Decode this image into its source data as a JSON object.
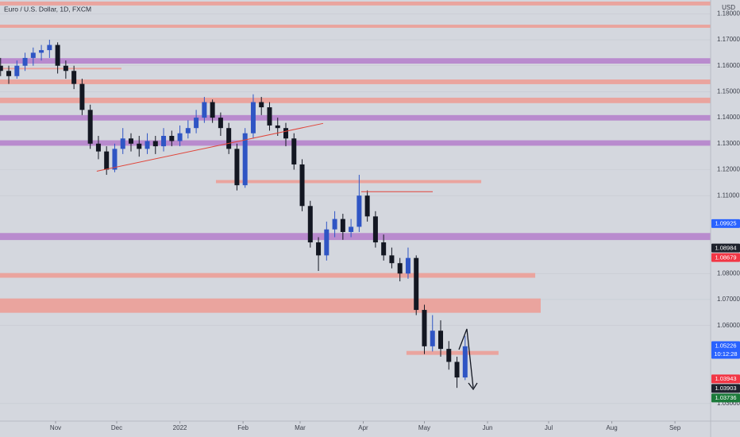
{
  "chart_data": {
    "type": "candlestick",
    "title": "Euro / U.S. Dollar, 1D, FXCM",
    "currency": "USD",
    "up_color": "#2f55c4",
    "down_color": "#131722",
    "grid": true,
    "xlim": [
      3.7,
      352.5
    ],
    "ylim": [
      1.0232,
      1.1853
    ],
    "xticks": [
      {
        "value": 31,
        "label": "Nov"
      },
      {
        "value": 61,
        "label": "Dec"
      },
      {
        "value": 92,
        "label": "2022"
      },
      {
        "value": 123,
        "label": "Feb"
      },
      {
        "value": 151,
        "label": "Mar"
      },
      {
        "value": 182,
        "label": "Apr"
      },
      {
        "value": 212,
        "label": "May"
      },
      {
        "value": 243,
        "label": "Jun"
      },
      {
        "value": 273,
        "label": "Jul"
      },
      {
        "value": 304,
        "label": "Aug"
      },
      {
        "value": 335,
        "label": "Sep"
      }
    ],
    "yticks": [
      {
        "value": 1.18,
        "label": "1.18000"
      },
      {
        "value": 1.17,
        "label": "1.17000"
      },
      {
        "value": 1.16,
        "label": "1.16000"
      },
      {
        "value": 1.15,
        "label": "1.15000"
      },
      {
        "value": 1.14,
        "label": "1.14000"
      },
      {
        "value": 1.13,
        "label": "1.13000"
      },
      {
        "value": 1.12,
        "label": "1.12000"
      },
      {
        "value": 1.11,
        "label": "1.11000"
      },
      {
        "value": 1.08,
        "label": "1.08000"
      },
      {
        "value": 1.07,
        "label": "1.07000"
      },
      {
        "value": 1.06,
        "label": "1.06000"
      },
      {
        "value": 1.03,
        "label": "1.03000"
      }
    ],
    "ohlc": [
      [
        4,
        1.16,
        1.163,
        1.156,
        1.158
      ],
      [
        8,
        1.158,
        1.16,
        1.153,
        1.156
      ],
      [
        12,
        1.156,
        1.162,
        1.155,
        1.16
      ],
      [
        16,
        1.16,
        1.165,
        1.158,
        1.163
      ],
      [
        20,
        1.163,
        1.167,
        1.16,
        1.165
      ],
      [
        24,
        1.165,
        1.168,
        1.162,
        1.166
      ],
      [
        28,
        1.166,
        1.17,
        1.163,
        1.168
      ],
      [
        32,
        1.168,
        1.169,
        1.157,
        1.16
      ],
      [
        36,
        1.16,
        1.162,
        1.155,
        1.158
      ],
      [
        40,
        1.158,
        1.16,
        1.151,
        1.153
      ],
      [
        44,
        1.153,
        1.155,
        1.141,
        1.143
      ],
      [
        48,
        1.143,
        1.145,
        1.128,
        1.13
      ],
      [
        52,
        1.13,
        1.133,
        1.124,
        1.127
      ],
      [
        56,
        1.127,
        1.129,
        1.118,
        1.12
      ],
      [
        60,
        1.12,
        1.13,
        1.119,
        1.128
      ],
      [
        64,
        1.128,
        1.136,
        1.126,
        1.132
      ],
      [
        68,
        1.132,
        1.134,
        1.127,
        1.13
      ],
      [
        72,
        1.13,
        1.133,
        1.125,
        1.128
      ],
      [
        76,
        1.128,
        1.134,
        1.126,
        1.131
      ],
      [
        80,
        1.131,
        1.133,
        1.126,
        1.129
      ],
      [
        84,
        1.129,
        1.136,
        1.127,
        1.133
      ],
      [
        88,
        1.133,
        1.135,
        1.129,
        1.131
      ],
      [
        92,
        1.131,
        1.137,
        1.129,
        1.134
      ],
      [
        96,
        1.134,
        1.139,
        1.132,
        1.136
      ],
      [
        100,
        1.136,
        1.143,
        1.134,
        1.14
      ],
      [
        104,
        1.14,
        1.148,
        1.138,
        1.146
      ],
      [
        108,
        1.146,
        1.147,
        1.138,
        1.14
      ],
      [
        112,
        1.14,
        1.142,
        1.133,
        1.136
      ],
      [
        116,
        1.136,
        1.138,
        1.126,
        1.128
      ],
      [
        120,
        1.128,
        1.13,
        1.112,
        1.114
      ],
      [
        124,
        1.114,
        1.136,
        1.113,
        1.134
      ],
      [
        128,
        1.134,
        1.149,
        1.132,
        1.146
      ],
      [
        132,
        1.146,
        1.148,
        1.141,
        1.144
      ],
      [
        136,
        1.144,
        1.146,
        1.135,
        1.137
      ],
      [
        140,
        1.137,
        1.14,
        1.133,
        1.136
      ],
      [
        144,
        1.136,
        1.138,
        1.129,
        1.132
      ],
      [
        148,
        1.132,
        1.134,
        1.12,
        1.122
      ],
      [
        152,
        1.122,
        1.124,
        1.104,
        1.106
      ],
      [
        156,
        1.106,
        1.108,
        1.09,
        1.092
      ],
      [
        160,
        1.092,
        1.094,
        1.081,
        1.087
      ],
      [
        164,
        1.087,
        1.1,
        1.085,
        1.097
      ],
      [
        168,
        1.097,
        1.104,
        1.094,
        1.101
      ],
      [
        172,
        1.101,
        1.103,
        1.093,
        1.096
      ],
      [
        176,
        1.096,
        1.101,
        1.094,
        1.098
      ],
      [
        180,
        1.098,
        1.118,
        1.096,
        1.11
      ],
      [
        184,
        1.11,
        1.112,
        1.1,
        1.102
      ],
      [
        188,
        1.102,
        1.104,
        1.09,
        1.092
      ],
      [
        192,
        1.092,
        1.095,
        1.085,
        1.087
      ],
      [
        196,
        1.087,
        1.09,
        1.082,
        1.084
      ],
      [
        200,
        1.084,
        1.086,
        1.077,
        1.08
      ],
      [
        204,
        1.08,
        1.09,
        1.078,
        1.086
      ],
      [
        208,
        1.086,
        1.087,
        1.064,
        1.066
      ],
      [
        212,
        1.066,
        1.068,
        1.049,
        1.052
      ],
      [
        216,
        1.052,
        1.064,
        1.05,
        1.058
      ],
      [
        220,
        1.058,
        1.062,
        1.048,
        1.051
      ],
      [
        224,
        1.051,
        1.054,
        1.043,
        1.046
      ],
      [
        228,
        1.046,
        1.048,
        1.036,
        1.04
      ],
      [
        232,
        1.04,
        1.056,
        1.039,
        1.052
      ]
    ],
    "zones": [
      {
        "low": 1.1832,
        "high": 1.1847,
        "x0": 3.7,
        "x1": 352.5,
        "color": "#ec9f97"
      },
      {
        "low": 1.1746,
        "high": 1.1758,
        "x0": 3.7,
        "x1": 352.5,
        "color": "#ec9f97"
      },
      {
        "low": 1.1608,
        "high": 1.1629,
        "x0": 3.7,
        "x1": 352.5,
        "color": "#b683cc"
      },
      {
        "low": 1.1586,
        "high": 1.1592,
        "x0": 3.7,
        "x1": 63.3,
        "color": "#ec9f97"
      },
      {
        "low": 1.1529,
        "high": 1.1547,
        "x0": 3.7,
        "x1": 352.5,
        "color": "#ec9f97"
      },
      {
        "low": 1.1456,
        "high": 1.1477,
        "x0": 3.7,
        "x1": 352.5,
        "color": "#ec9f97"
      },
      {
        "low": 1.1389,
        "high": 1.141,
        "x0": 3.7,
        "x1": 352.5,
        "color": "#b683cc"
      },
      {
        "low": 1.1292,
        "high": 1.1313,
        "x0": 3.7,
        "x1": 352.5,
        "color": "#b683cc"
      },
      {
        "low": 1.1148,
        "high": 1.116,
        "x0": 109.7,
        "x1": 239.9,
        "color": "#ec9f97"
      },
      {
        "low": 1.0929,
        "high": 1.0956,
        "x0": 3.7,
        "x1": 352.5,
        "color": "#b683cc"
      },
      {
        "low": 1.0784,
        "high": 1.0802,
        "x0": 3.7,
        "x1": 266.4,
        "color": "#ec9f97"
      },
      {
        "low": 1.0649,
        "high": 1.0704,
        "x0": 3.7,
        "x1": 269.1,
        "color": "#ec9f97"
      },
      {
        "low": 1.0487,
        "high": 1.0502,
        "x0": 203.2,
        "x1": 248.4,
        "color": "#ec9f97"
      }
    ],
    "lines": [
      {
        "x": [
          51.2,
          162.3
        ],
        "y": [
          1.1194,
          1.1378
        ],
        "color": "#e0453a"
      },
      {
        "x": [
          181.0,
          216.1
        ],
        "y": [
          1.1115,
          1.1115
        ],
        "color": "#e0453a"
      }
    ],
    "price_labels": [
      {
        "value": 1.09925,
        "color": "#2962ff"
      },
      {
        "value": 1.08984,
        "color": "#1e222d"
      },
      {
        "value": 1.08679,
        "color": "#f23645"
      },
      {
        "value": 1.05226,
        "color": "#2962ff",
        "time": "10:12:28"
      },
      {
        "value": 1.03943,
        "color": "#f23645"
      },
      {
        "value": 1.03903,
        "color": "#1e222d"
      },
      {
        "value": 1.03736,
        "color": "#1b7a3a"
      }
    ]
  }
}
